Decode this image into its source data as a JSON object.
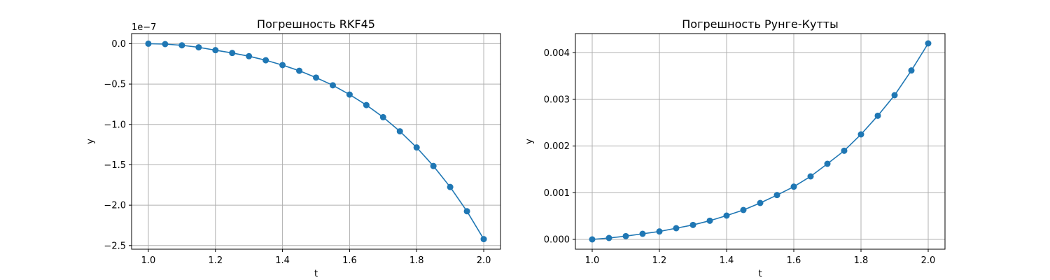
{
  "chart_data": [
    {
      "type": "line",
      "title": "Погрешность RKF45",
      "xlabel": "t",
      "ylabel": "y",
      "offset_text": "1e−7",
      "xlim": [
        0.95,
        2.05
      ],
      "ylim": [
        -2.545,
        0.125
      ],
      "xticks": [
        1.0,
        1.2,
        1.4,
        1.6,
        1.8,
        2.0
      ],
      "xtick_labels": [
        "1.0",
        "1.2",
        "1.4",
        "1.6",
        "1.8",
        "2.0"
      ],
      "yticks": [
        0.0,
        -0.5,
        -1.0,
        -1.5,
        -2.0,
        -2.5
      ],
      "ytick_labels": [
        "0.0",
        "−0.5",
        "−1.0",
        "−1.5",
        "−2.0",
        "−2.5"
      ],
      "grid": true,
      "series": [
        {
          "color": "#1f77b4",
          "marker": "circle",
          "x": [
            1.0,
            1.05,
            1.1,
            1.15,
            1.2,
            1.25,
            1.3,
            1.35,
            1.4,
            1.45,
            1.5,
            1.55,
            1.6,
            1.65,
            1.7,
            1.75,
            1.8,
            1.85,
            1.9,
            1.95,
            2.0
          ],
          "y": [
            0.0,
            -0.005,
            -0.02,
            -0.045,
            -0.08,
            -0.115,
            -0.155,
            -0.205,
            -0.265,
            -0.335,
            -0.42,
            -0.515,
            -0.63,
            -0.76,
            -0.91,
            -1.085,
            -1.285,
            -1.515,
            -1.775,
            -2.075,
            -2.42
          ]
        }
      ]
    },
    {
      "type": "line",
      "title": "Погрешность Рунге-Кутты",
      "xlabel": "t",
      "ylabel": "y",
      "xlim": [
        0.95,
        2.05
      ],
      "ylim": [
        -0.00021,
        0.00441
      ],
      "xticks": [
        1.0,
        1.2,
        1.4,
        1.6,
        1.8,
        2.0
      ],
      "xtick_labels": [
        "1.0",
        "1.2",
        "1.4",
        "1.6",
        "1.8",
        "2.0"
      ],
      "yticks": [
        0.0,
        0.001,
        0.002,
        0.003,
        0.004
      ],
      "ytick_labels": [
        "0.000",
        "0.001",
        "0.002",
        "0.003",
        "0.004"
      ],
      "grid": true,
      "series": [
        {
          "color": "#1f77b4",
          "marker": "circle",
          "x": [
            1.0,
            1.05,
            1.1,
            1.15,
            1.2,
            1.25,
            1.3,
            1.35,
            1.4,
            1.45,
            1.5,
            1.55,
            1.6,
            1.65,
            1.7,
            1.75,
            1.8,
            1.85,
            1.9,
            1.95,
            2.0
          ],
          "y": [
            0.0,
            3e-05,
            7e-05,
            0.00012,
            0.00017,
            0.00024,
            0.00031,
            0.0004,
            0.00051,
            0.00063,
            0.00078,
            0.00095,
            0.00113,
            0.00135,
            0.00162,
            0.0019,
            0.00225,
            0.00265,
            0.00309,
            0.00362,
            0.0042
          ]
        }
      ]
    }
  ]
}
